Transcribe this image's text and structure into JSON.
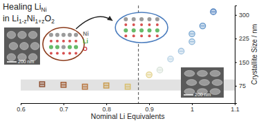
{
  "chart_data": {
    "type": "scatter",
    "title": [
      [
        "Healing Li",
        "Ni"
      ],
      [
        "in Li",
        "1-z",
        "Ni",
        "1+z",
        "O",
        "2"
      ]
    ],
    "x_label": "Nominal Li Equivalents",
    "y_label": "Crystallite Size / nm",
    "series": [
      {
        "marker": "square",
        "x": [
          0.65,
          0.7,
          0.75,
          0.8,
          0.85
        ],
        "values": [
          80,
          78,
          72,
          76,
          72
        ],
        "colors": [
          "#8b4a2b",
          "#a0582e",
          "#b8733a",
          "#c99a4b",
          "#d8be6a"
        ]
      },
      {
        "marker": "circle",
        "x": [
          0.9,
          0.925,
          0.95,
          0.975,
          1.0,
          1.0,
          1.025,
          1.05
        ],
        "values": [
          110,
          125,
          160,
          185,
          215,
          240,
          265,
          310
        ],
        "colors": [
          "#e3d28c",
          "#d8e2d8",
          "#b9d3e6",
          "#a3c4e0",
          "#8cb5d8",
          "#7aa8d2",
          "#6597ca",
          "#4b7dbe"
        ]
      }
    ],
    "xlim": [
      0.6,
      1.1
    ],
    "xticks": [
      0.6,
      0.7,
      0.8,
      0.9,
      1,
      1.1
    ],
    "ylim": [
      20,
      330
    ],
    "yticks": [
      75,
      150,
      225,
      300
    ],
    "band": [
      60,
      95
    ],
    "threshold": 0.875,
    "annotations": [
      "Ni",
      "Li",
      "O",
      "200 nm"
    ]
  }
}
